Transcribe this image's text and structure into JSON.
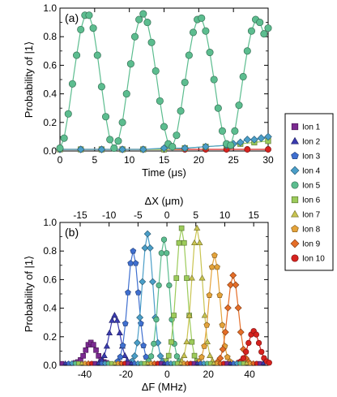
{
  "legend": [
    {
      "label": "Ion 1",
      "color": "#7b2a91",
      "marker": "square"
    },
    {
      "label": "Ion 2",
      "color": "#3a3bb0",
      "marker": "triangle"
    },
    {
      "label": "Ion 3",
      "color": "#3f6fd0",
      "marker": "pentagon"
    },
    {
      "label": "Ion 4",
      "color": "#4a9ec8",
      "marker": "diamond"
    },
    {
      "label": "Ion 5",
      "color": "#5cbd8f",
      "marker": "circle"
    },
    {
      "label": "Ion 6",
      "color": "#9ccb5a",
      "marker": "square"
    },
    {
      "label": "Ion 7",
      "color": "#c9c450",
      "marker": "triangle"
    },
    {
      "label": "Ion 8",
      "color": "#e4a33a",
      "marker": "pentagon"
    },
    {
      "label": "Ion 9",
      "color": "#e56d27",
      "marker": "diamond"
    },
    {
      "label": "Ion 10",
      "color": "#d6221e",
      "marker": "circle"
    }
  ],
  "chart_data": [
    {
      "panel": "(a)",
      "type": "line",
      "xlabel": "Time (μs)",
      "ylabel": "Probability of |1⟩",
      "xlim": [
        0,
        30
      ],
      "ylim": [
        0,
        1.0
      ],
      "xticks": [
        "0",
        "5",
        "10",
        "15",
        "20",
        "25",
        "30"
      ],
      "yticks": [
        "0.0",
        "0.2",
        "0.4",
        "0.6",
        "0.8",
        "1.0"
      ],
      "series": [
        {
          "name": "Ion 5",
          "x": [
            0,
            0.6,
            1.2,
            1.8,
            2.4,
            3.0,
            3.6,
            4.2,
            4.8,
            5.4,
            6.0,
            6.6,
            7.2,
            7.8,
            8.4,
            9.0,
            9.6,
            10.2,
            10.8,
            11.4,
            12.0,
            12.6,
            13.2,
            13.8,
            14.4,
            15.0,
            15.6,
            16.2,
            16.8,
            17.4,
            18.0,
            18.6,
            19.2,
            19.8,
            20.4,
            21.0,
            21.6,
            22.2,
            22.8,
            23.4,
            24.0,
            24.6,
            25.2,
            25.8,
            26.4,
            27.0,
            27.6,
            28.2,
            28.8,
            29.4,
            30.0
          ],
          "values": [
            0.02,
            0.09,
            0.26,
            0.47,
            0.67,
            0.85,
            0.95,
            0.95,
            0.86,
            0.67,
            0.45,
            0.24,
            0.08,
            0.02,
            0.07,
            0.2,
            0.4,
            0.61,
            0.8,
            0.92,
            0.96,
            0.9,
            0.76,
            0.56,
            0.35,
            0.17,
            0.05,
            0.03,
            0.11,
            0.28,
            0.48,
            0.67,
            0.83,
            0.92,
            0.93,
            0.84,
            0.69,
            0.5,
            0.3,
            0.14,
            0.05,
            0.04,
            0.14,
            0.32,
            0.52,
            0.7,
            0.84,
            0.92,
            0.9,
            0.82,
            0.86
          ]
        },
        {
          "name": "Ion 4",
          "x": [
            0,
            3,
            6,
            9,
            12,
            15,
            18,
            21,
            24,
            25,
            26,
            27,
            28,
            29,
            30
          ],
          "values": [
            0.01,
            0.01,
            0.01,
            0.01,
            0.01,
            0.02,
            0.02,
            0.03,
            0.04,
            0.05,
            0.06,
            0.08,
            0.08,
            0.09,
            0.1
          ]
        },
        {
          "name": "Ion 6",
          "x": [
            0,
            3,
            6,
            9,
            12,
            15,
            18,
            21,
            24,
            26,
            28,
            30
          ],
          "values": [
            0.01,
            0.01,
            0.01,
            0.01,
            0.01,
            0.01,
            0.02,
            0.03,
            0.04,
            0.05,
            0.06,
            0.07
          ]
        },
        {
          "name": "Ion 10",
          "x": [
            0,
            3,
            6,
            9,
            12,
            15,
            18,
            21,
            24,
            27,
            30
          ],
          "values": [
            0.0,
            0.0,
            0.01,
            0.0,
            0.01,
            0.0,
            0.01,
            0.01,
            0.01,
            0.01,
            0.01
          ]
        }
      ]
    },
    {
      "panel": "(b)",
      "type": "line",
      "xlabel": "ΔF (MHz)",
      "x2label": "ΔX (μm)",
      "ylabel": "Probability of |1⟩",
      "xlim": [
        -52,
        49
      ],
      "x2lim": [
        -18.5,
        17.5
      ],
      "ylim": [
        0,
        1.0
      ],
      "xticks": [
        "-40",
        "-20",
        "0",
        "20",
        "40"
      ],
      "x2ticks": [
        "-15",
        "-10",
        "-5",
        "0",
        "5",
        "10",
        "15"
      ],
      "yticks": [
        "0.0",
        "0.2",
        "0.4",
        "0.6",
        "0.8",
        "1.0"
      ],
      "series": [
        {
          "name": "Ion 1",
          "center": -37.0,
          "peak": 0.16
        },
        {
          "name": "Ion 2",
          "center": -25.5,
          "peak": 0.35
        },
        {
          "name": "Ion 3",
          "center": -16.5,
          "peak": 0.8
        },
        {
          "name": "Ion 4",
          "center": -9.5,
          "peak": 0.92
        },
        {
          "name": "Ion 5",
          "center": -1.5,
          "peak": 0.88
        },
        {
          "name": "Ion 6",
          "center": 7.0,
          "peak": 0.96
        },
        {
          "name": "Ion 7",
          "center": 14.5,
          "peak": 0.96
        },
        {
          "name": "Ion 8",
          "center": 23.0,
          "peak": 0.77
        },
        {
          "name": "Ion 9",
          "center": 32.0,
          "peak": 0.63
        },
        {
          "name": "Ion 10",
          "center": 42.0,
          "peak": 0.24
        }
      ]
    }
  ]
}
